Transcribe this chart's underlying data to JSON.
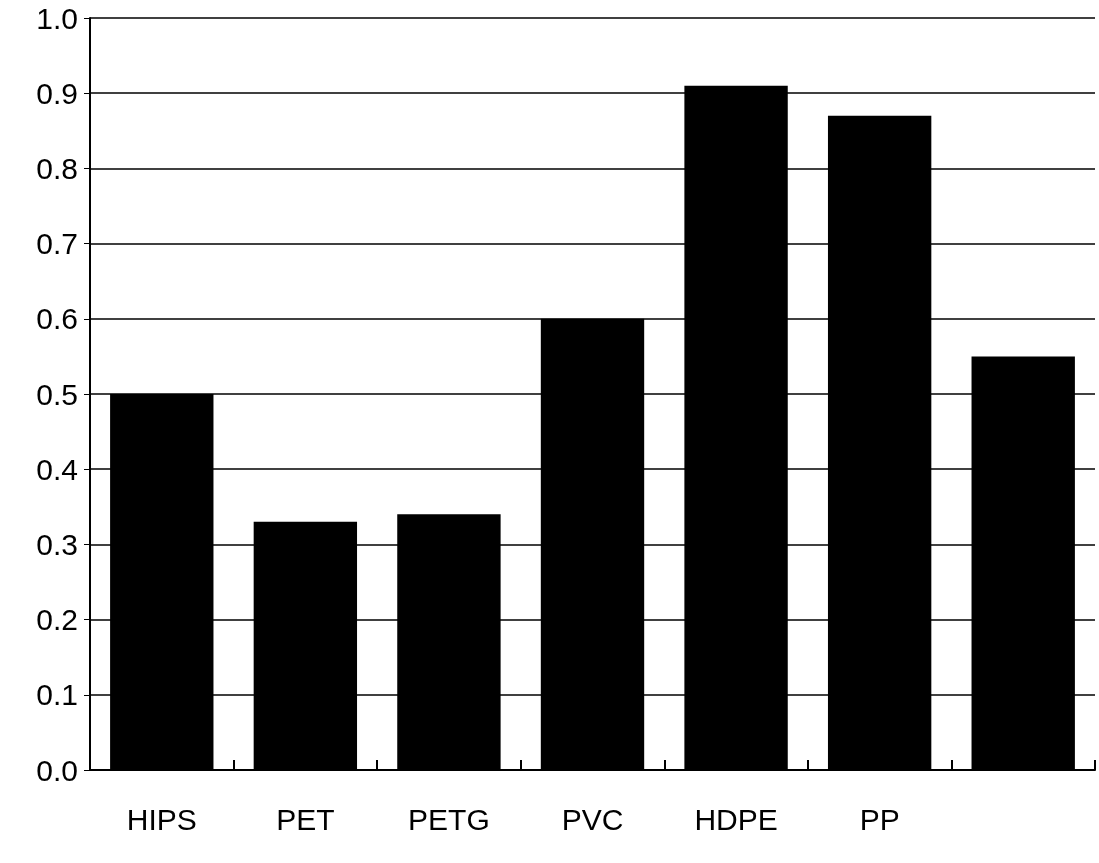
{
  "chart_data": {
    "type": "bar",
    "categories": [
      "HIPS",
      "PET",
      "PETG",
      "PVC",
      "HDPE",
      "PP",
      null
    ],
    "values": [
      0.5,
      0.33,
      0.34,
      0.6,
      0.91,
      0.87,
      0.55
    ],
    "color": "#000000",
    "ylim": [
      0,
      1.0
    ],
    "yticks": [
      {
        "value": 0,
        "label": "0.0"
      },
      {
        "value": 0.1,
        "label": "0.1"
      },
      {
        "value": 0.2,
        "label": "0.2"
      },
      {
        "value": 0.3,
        "label": "0.3"
      },
      {
        "value": 0.4,
        "label": "0.4"
      },
      {
        "value": 0.5,
        "label": "0.5"
      },
      {
        "value": 0.6,
        "label": "0.6"
      },
      {
        "value": 0.7,
        "label": "0.7"
      },
      {
        "value": 0.8,
        "label": "0.8"
      },
      {
        "value": 0.9,
        "label": "0.9"
      },
      {
        "value": 1.0,
        "label": "1.0"
      }
    ],
    "grid": "y"
  }
}
